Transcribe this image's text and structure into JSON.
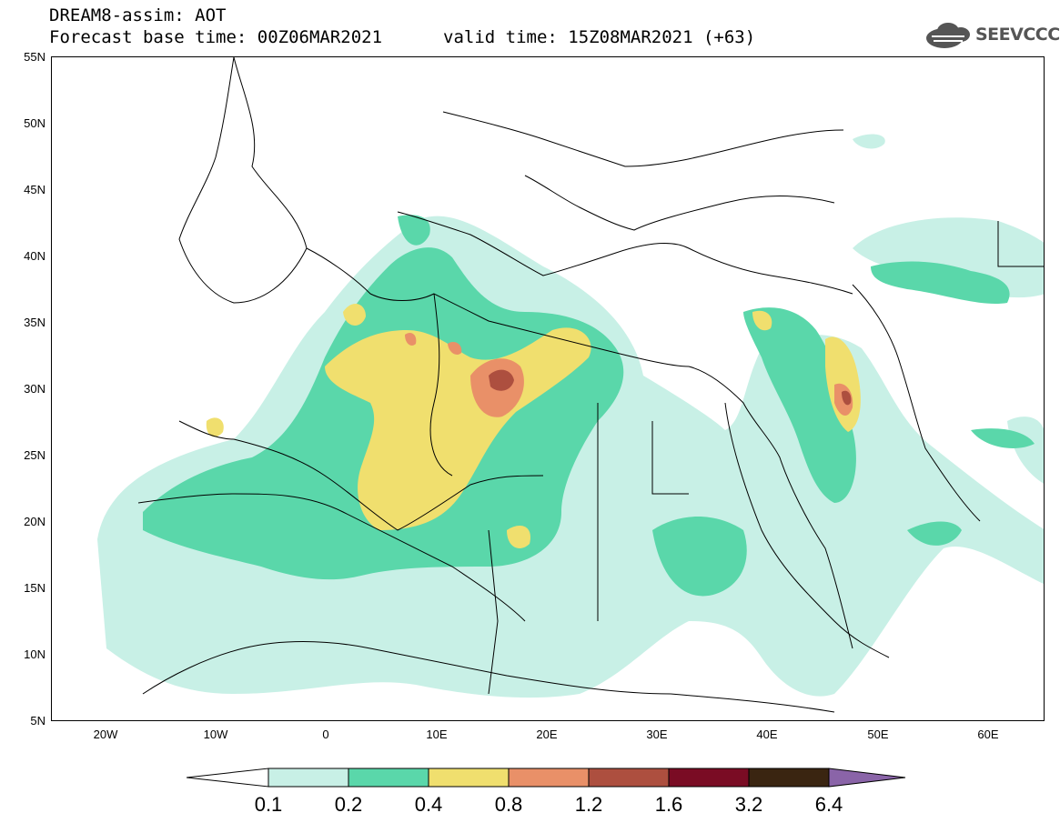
{
  "title": {
    "line1": "DREAM8-assim: AOT",
    "line2": "Forecast base time: 00Z06MAR2021",
    "valid": "valid time: 15Z08MAR2021 (+63)"
  },
  "logo": {
    "text": "SEEVCCC",
    "icon": "cloud-logo-icon"
  },
  "axes": {
    "lat_labels": [
      "55N",
      "50N",
      "45N",
      "40N",
      "35N",
      "30N",
      "25N",
      "20N",
      "15N",
      "10N",
      "5N"
    ],
    "lon_labels": [
      "20W",
      "10W",
      "0",
      "10E",
      "20E",
      "30E",
      "40E",
      "50E",
      "60E"
    ],
    "lat_range": [
      5,
      55
    ],
    "lon_range": [
      -25,
      65
    ]
  },
  "legend": {
    "levels": [
      "0.1",
      "0.2",
      "0.4",
      "0.8",
      "1.2",
      "1.6",
      "3.2",
      "6.4"
    ],
    "colors": [
      "#c8f0e6",
      "#5ad7aa",
      "#f0df6e",
      "#e99068",
      "#ad4f3f",
      "#7a0c24",
      "#3a2511",
      "#8a64a8"
    ]
  }
}
